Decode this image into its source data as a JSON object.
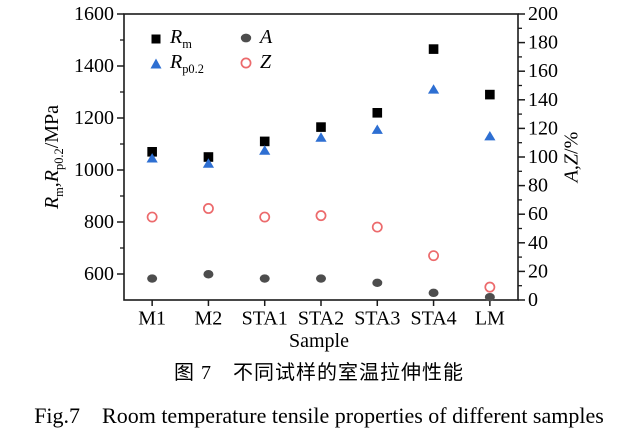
{
  "figure": {
    "caption_cn": "图 7　不同试样的室温拉伸性能",
    "caption_en": "Fig.7    Room temperature tensile properties of different samples"
  },
  "colors": {
    "axis": "#1a1a1a",
    "rm": "#000000",
    "rp02": "#2e6fd2",
    "a": "#4d4d4d",
    "z": "#ec6a6c",
    "background": "#ffffff"
  },
  "legend": {
    "items": [
      {
        "id": "rm",
        "marker": "square-filled",
        "color": "#000000",
        "label_parts": [
          {
            "text": "R",
            "italic": true
          },
          {
            "text": "m",
            "sub": true
          }
        ]
      },
      {
        "id": "a",
        "marker": "circle-filled",
        "color": "#4d4d4d",
        "label_parts": [
          {
            "text": "A",
            "italic": true
          }
        ]
      },
      {
        "id": "rp02",
        "marker": "triangle-filled",
        "color": "#2e6fd2",
        "label_parts": [
          {
            "text": "R",
            "italic": true
          },
          {
            "text": "p0.2",
            "sub": true
          }
        ]
      },
      {
        "id": "z",
        "marker": "circle-open",
        "color": "#ec6a6c",
        "label_parts": [
          {
            "text": "Z",
            "italic": true
          }
        ]
      }
    ]
  },
  "chart_data": {
    "type": "scatter",
    "title": "图 7 不同试样的室温拉伸性能 / Fig.7 Room temperature tensile properties of different samples",
    "categories": [
      "M1",
      "M2",
      "STA1",
      "STA2",
      "STA3",
      "STA4",
      "LM"
    ],
    "xlabel": "Sample",
    "series": [
      {
        "name": "Rm",
        "axis": "left",
        "marker": "square-filled",
        "color": "#000000",
        "values": [
          1070,
          1050,
          1110,
          1165,
          1220,
          1465,
          1290
        ]
      },
      {
        "name": "Rp0.2",
        "axis": "left",
        "marker": "triangle-filled",
        "color": "#2e6fd2",
        "values": [
          1045,
          1025,
          1075,
          1125,
          1155,
          1310,
          1130
        ]
      },
      {
        "name": "A",
        "axis": "right",
        "marker": "circle-filled",
        "color": "#4d4d4d",
        "values": [
          15,
          18,
          15,
          15,
          12,
          5,
          2
        ]
      },
      {
        "name": "Z",
        "axis": "right",
        "marker": "circle-open",
        "color": "#ec6a6c",
        "values": [
          58,
          64,
          58,
          59,
          51,
          31,
          9
        ]
      }
    ],
    "left_axis": {
      "label": "Rm,Rp0.2/MPa",
      "label_parts": [
        {
          "text": "R",
          "italic": true
        },
        {
          "text": "m",
          "sub": true
        },
        {
          "text": ","
        },
        {
          "text": "R",
          "italic": true
        },
        {
          "text": "p0.2",
          "sub": true
        },
        {
          "text": "/MPa"
        }
      ],
      "min": 500,
      "max": 1600,
      "major_ticks": [
        600,
        800,
        1000,
        1200,
        1400,
        1600
      ],
      "minor_ticks": [
        700,
        900,
        1100,
        1300,
        1500
      ]
    },
    "right_axis": {
      "label": "A,Z/%",
      "label_parts": [
        {
          "text": "A",
          "italic": true
        },
        {
          "text": ","
        },
        {
          "text": "Z",
          "italic": true
        },
        {
          "text": "/%"
        }
      ],
      "min": 0,
      "max": 200,
      "major_ticks": [
        0,
        20,
        40,
        60,
        80,
        100,
        120,
        140,
        160,
        180,
        200
      ],
      "minor_ticks": [
        10,
        30,
        50,
        70,
        90,
        110,
        130,
        150,
        170,
        190
      ]
    },
    "grid": false,
    "legend_position": "top-left-inside"
  }
}
